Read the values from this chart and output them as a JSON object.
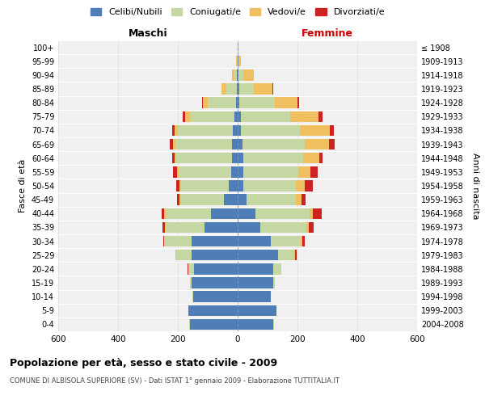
{
  "age_groups": [
    "0-4",
    "5-9",
    "10-14",
    "15-19",
    "20-24",
    "25-29",
    "30-34",
    "35-39",
    "40-44",
    "45-49",
    "50-54",
    "55-59",
    "60-64",
    "65-69",
    "70-74",
    "75-79",
    "80-84",
    "85-89",
    "90-94",
    "95-99",
    "100+"
  ],
  "birth_years": [
    "2004-2008",
    "1999-2003",
    "1994-1998",
    "1989-1993",
    "1984-1988",
    "1979-1983",
    "1974-1978",
    "1969-1973",
    "1964-1968",
    "1959-1963",
    "1954-1958",
    "1949-1953",
    "1944-1948",
    "1939-1943",
    "1934-1938",
    "1929-1933",
    "1924-1928",
    "1919-1923",
    "1914-1918",
    "1909-1913",
    "≤ 1908"
  ],
  "colors": {
    "celibi": "#4f7db8",
    "coniugati": "#c5d8a4",
    "vedovi": "#f0c060",
    "divorziati": "#cc2222",
    "background": "#f0f0f0",
    "grid": "#cccccc",
    "center_line": "#7799bb"
  },
  "maschi": {
    "celibi": [
      160,
      165,
      150,
      155,
      145,
      155,
      155,
      110,
      90,
      45,
      30,
      22,
      20,
      18,
      15,
      10,
      6,
      4,
      2,
      1,
      1
    ],
    "coniugati": [
      1,
      1,
      2,
      5,
      20,
      50,
      90,
      130,
      150,
      145,
      160,
      175,
      185,
      190,
      185,
      150,
      95,
      35,
      8,
      2,
      0
    ],
    "vedovi": [
      0,
      0,
      0,
      0,
      1,
      2,
      2,
      3,
      5,
      5,
      5,
      5,
      5,
      8,
      10,
      15,
      15,
      15,
      8,
      2,
      0
    ],
    "divorziati": [
      0,
      0,
      0,
      0,
      1,
      2,
      2,
      8,
      10,
      8,
      10,
      15,
      10,
      10,
      10,
      8,
      2,
      0,
      0,
      0,
      0
    ]
  },
  "femmine": {
    "celibi": [
      120,
      130,
      110,
      120,
      120,
      135,
      110,
      75,
      60,
      30,
      20,
      18,
      18,
      15,
      12,
      10,
      5,
      5,
      3,
      2,
      1
    ],
    "coniugati": [
      1,
      1,
      2,
      5,
      25,
      55,
      100,
      155,
      180,
      165,
      175,
      185,
      200,
      210,
      195,
      165,
      120,
      50,
      15,
      2,
      0
    ],
    "vedovi": [
      0,
      0,
      0,
      0,
      1,
      3,
      5,
      8,
      12,
      18,
      30,
      40,
      55,
      80,
      100,
      95,
      75,
      60,
      35,
      8,
      2
    ],
    "divorziati": [
      0,
      0,
      0,
      0,
      1,
      3,
      8,
      15,
      30,
      15,
      25,
      25,
      12,
      20,
      15,
      15,
      5,
      5,
      2,
      0,
      0
    ]
  },
  "xlim": 600,
  "title": "Popolazione per età, sesso e stato civile - 2009",
  "subtitle": "COMUNE DI ALBISOLA SUPERIORE (SV) - Dati ISTAT 1° gennaio 2009 - Elaborazione TUTTITALIA.IT",
  "xlabel_left": "Maschi",
  "xlabel_right": "Femmine",
  "ylabel_left": "Fasce di età",
  "ylabel_right": "Anni di nascita",
  "legend_labels": [
    "Celibi/Nubili",
    "Coniugati/e",
    "Vedovi/e",
    "Divorziati/e"
  ]
}
